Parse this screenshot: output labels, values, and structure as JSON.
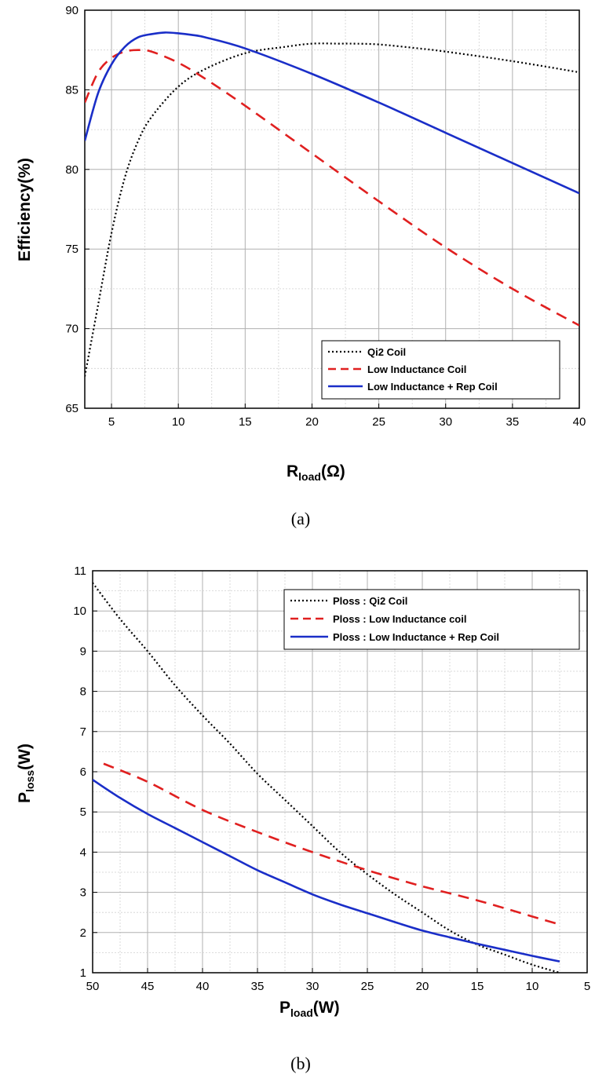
{
  "chart_data": [
    {
      "type": "line",
      "caption": "(a)",
      "ylabel": "Efficiency(%)",
      "xlabel_main": "R",
      "xlabel_sub": "load",
      "xlabel_unit": "(Ω)",
      "xlim": [
        3,
        40
      ],
      "ylim": [
        65,
        90
      ],
      "x_ticks": [
        5,
        10,
        15,
        20,
        25,
        30,
        35,
        40
      ],
      "y_ticks": [
        65,
        70,
        75,
        80,
        85,
        90
      ],
      "grid": true,
      "legend_position": "bottom-right",
      "series": [
        {
          "name": "Qi2 Coil",
          "color": "#000000",
          "style": "dotted",
          "x": [
            3,
            4,
            5,
            6,
            7,
            8,
            10,
            12,
            15,
            18,
            20,
            22,
            23,
            25,
            28,
            30,
            35,
            40
          ],
          "y": [
            67,
            71.5,
            76,
            79.5,
            81.8,
            83.3,
            85.2,
            86.3,
            87.3,
            87.7,
            87.9,
            87.9,
            87.9,
            87.85,
            87.6,
            87.4,
            86.8,
            86.1
          ]
        },
        {
          "name": "Low Inductance Coil",
          "color": "#e02020",
          "style": "dashed",
          "x": [
            3,
            4,
            5,
            6,
            7,
            8,
            10,
            12,
            15,
            20,
            25,
            30,
            35,
            40
          ],
          "y": [
            84.2,
            86.1,
            87,
            87.4,
            87.5,
            87.4,
            86.7,
            85.7,
            84,
            81,
            78,
            75.1,
            72.5,
            70.2
          ]
        },
        {
          "name": "Low Inductance + Rep Coil",
          "color": "#1a2ec8",
          "style": "solid",
          "x": [
            3,
            4,
            5,
            6,
            7,
            8,
            9,
            10,
            11,
            12,
            15,
            20,
            25,
            30,
            35,
            40
          ],
          "y": [
            81.8,
            84.8,
            86.6,
            87.7,
            88.3,
            88.5,
            88.6,
            88.55,
            88.45,
            88.3,
            87.6,
            86,
            84.2,
            82.3,
            80.4,
            78.5
          ]
        }
      ]
    },
    {
      "type": "line",
      "caption": "(b)",
      "ylabel_main": "P",
      "ylabel_sub": "loss",
      "ylabel_unit": "(W)",
      "xlabel_main": "P",
      "xlabel_sub": "load",
      "xlabel_unit": "(W)",
      "xlim": [
        50,
        5
      ],
      "ylim": [
        1,
        11
      ],
      "x_ticks": [
        50,
        45,
        40,
        35,
        30,
        25,
        20,
        15,
        10,
        5
      ],
      "y_ticks": [
        1,
        2,
        3,
        4,
        5,
        6,
        7,
        8,
        9,
        10,
        11
      ],
      "grid": true,
      "legend_position": "top-right",
      "series": [
        {
          "name": "Ploss : Qi2 Coil",
          "color": "#000000",
          "style": "dotted",
          "x": [
            50,
            47.5,
            45,
            42.5,
            40,
            37.5,
            35,
            32.5,
            30,
            27.5,
            25,
            22.5,
            20,
            17.5,
            15,
            12.5,
            10,
            7.5
          ],
          "y": [
            10.7,
            9.8,
            9.0,
            8.15,
            7.4,
            6.7,
            5.95,
            5.3,
            4.65,
            4.0,
            3.45,
            2.95,
            2.5,
            2.05,
            1.7,
            1.45,
            1.2,
            1.0
          ]
        },
        {
          "name": "Ploss : Low Inductance coil",
          "color": "#e02020",
          "style": "dashed",
          "x": [
            49,
            45,
            40,
            35,
            30,
            25,
            20,
            15,
            10,
            7.5
          ],
          "y": [
            6.2,
            5.75,
            5.05,
            4.5,
            4.0,
            3.55,
            3.15,
            2.8,
            2.4,
            2.2
          ]
        },
        {
          "name": "Ploss : Low Inductance + Rep Coil",
          "color": "#1a2ec8",
          "style": "solid",
          "x": [
            50,
            47.5,
            45,
            42.5,
            40,
            37.5,
            35,
            32.5,
            30,
            27.5,
            25,
            22.5,
            20,
            17.5,
            15,
            12.5,
            10,
            7.5
          ],
          "y": [
            5.8,
            5.35,
            4.95,
            4.6,
            4.25,
            3.9,
            3.55,
            3.25,
            2.95,
            2.7,
            2.48,
            2.26,
            2.05,
            1.88,
            1.72,
            1.57,
            1.42,
            1.28
          ]
        }
      ]
    }
  ]
}
